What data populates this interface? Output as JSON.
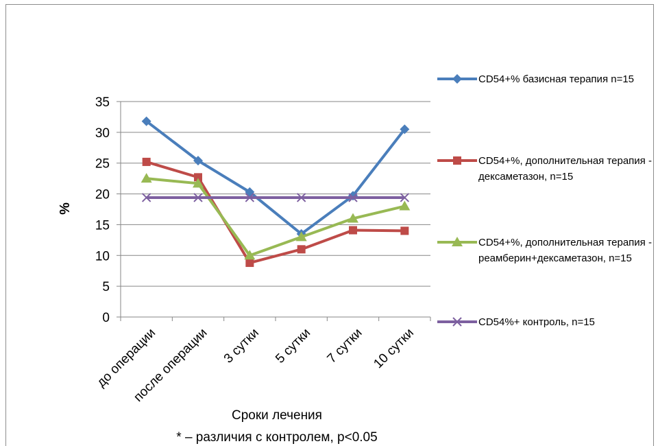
{
  "chart_data": {
    "type": "line",
    "categories": [
      "до операции",
      "после операции",
      "3 сутки",
      "5 сутки",
      "7 сутки",
      "10 сутки"
    ],
    "series": [
      {
        "name": "CD54+%  базисная терапия n=15",
        "values": [
          31.8,
          25.4,
          20.3,
          13.5,
          19.7,
          30.5
        ],
        "color": "#4a7ebb",
        "marker": "diamond"
      },
      {
        "name": "CD54+%,  дополнительная терапия - дексаметазон, n=15",
        "values": [
          25.2,
          22.7,
          8.8,
          11.0,
          14.1,
          14.0
        ],
        "color": "#be4b48",
        "marker": "square"
      },
      {
        "name": "CD54+%,  дополнительная терапия - реамберин+дексаметазон, n=15",
        "values": [
          22.5,
          21.7,
          10.0,
          13.0,
          16.0,
          18.0
        ],
        "color": "#98b954",
        "marker": "triangle"
      },
      {
        "name": "CD54%+ контроль, n=15",
        "values": [
          19.4,
          19.4,
          19.4,
          19.4,
          19.4,
          19.4
        ],
        "color": "#7d60a0",
        "marker": "x"
      }
    ],
    "ylim": [
      0,
      35
    ],
    "yticks": [
      0,
      5,
      10,
      15,
      20,
      25,
      30,
      35
    ],
    "ylabel": "%",
    "xlabel": "Сроки лечения",
    "note": "* – различия с контролем, р<0.05",
    "grid": true,
    "legend_position": "right"
  }
}
